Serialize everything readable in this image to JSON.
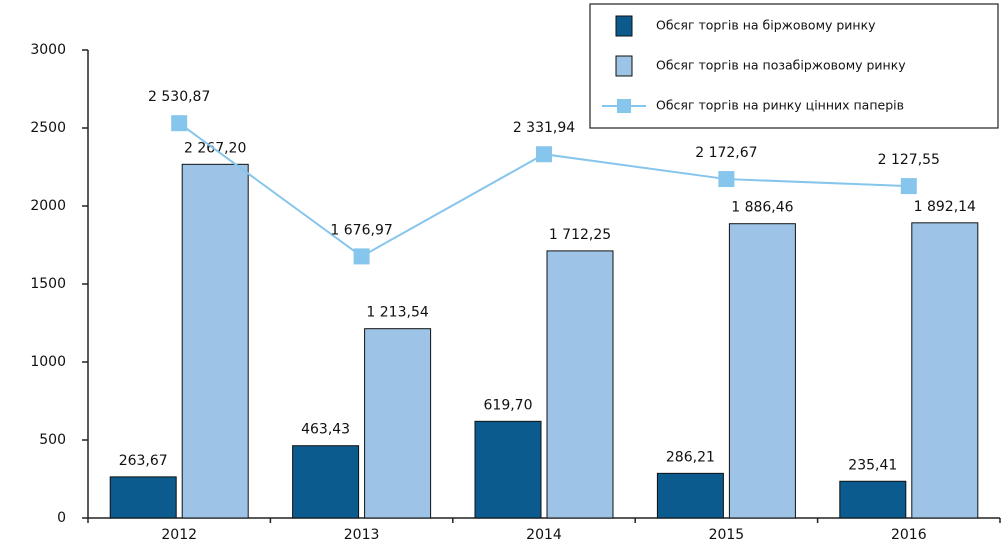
{
  "chart_data": {
    "type": "bar",
    "categories": [
      "2012",
      "2013",
      "2014",
      "2015",
      "2016"
    ],
    "series": [
      {
        "name": "Обсяг торгів на біржовому ринку",
        "color": "#0b5b8e",
        "type": "bar",
        "values": [
          263.67,
          463.43,
          619.7,
          286.21,
          235.41
        ],
        "value_labels": [
          "263,67",
          "463,43",
          "619,70",
          "286,21",
          "235,41"
        ]
      },
      {
        "name": "Обсяг торгів на позабіржовому ринку",
        "color": "#9dc4e7",
        "type": "bar",
        "values": [
          2267.2,
          1213.54,
          1712.25,
          1886.46,
          1892.14
        ],
        "value_labels": [
          "2 267,20",
          "1 213,54",
          "1 712,25",
          "1 886,46",
          "1 892,14"
        ]
      },
      {
        "name": "Обсяг торгів на ринку цінних паперів",
        "color": "#86c5ec",
        "type": "line",
        "values": [
          2530.87,
          1676.97,
          2331.94,
          2172.67,
          2127.55
        ],
        "value_labels": [
          "2 530,87",
          "1 676,97",
          "2 331,94",
          "2 172,67",
          "2 127,55"
        ]
      }
    ],
    "ylim": [
      0,
      3000
    ],
    "yticks": [
      0,
      500,
      1000,
      1500,
      2000,
      2500,
      3000
    ],
    "legend": "top-right"
  }
}
